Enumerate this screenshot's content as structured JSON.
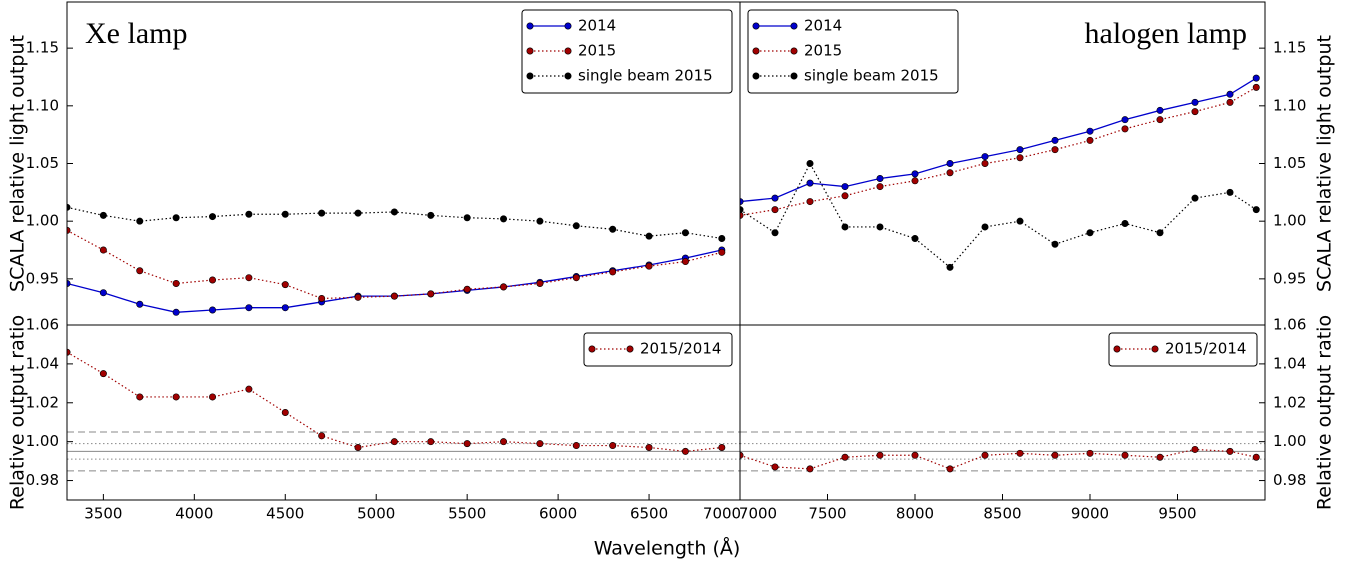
{
  "chart_data": [
    {
      "type": "line",
      "annotation": "Xe lamp",
      "ylabel": "SCALA relative light output",
      "yaxis_side": "left",
      "legend": "upper right",
      "x": [
        3300,
        3500,
        3700,
        3900,
        4100,
        4300,
        4500,
        4700,
        4900,
        5100,
        5300,
        5500,
        5700,
        5900,
        6100,
        6300,
        6500,
        6700,
        6900
      ],
      "xlim": [
        3300,
        7000
      ],
      "ylim": [
        0.91,
        1.19
      ],
      "yticks": [
        0.95,
        "1.00",
        1.05,
        "1.10",
        1.15
      ],
      "series": [
        {
          "name": "2014",
          "color": "#0000cc",
          "linestyle": "solid",
          "values": [
            0.946,
            0.938,
            0.928,
            0.921,
            0.923,
            0.925,
            0.925,
            0.93,
            0.935,
            0.935,
            0.937,
            0.94,
            0.943,
            0.947,
            0.952,
            0.957,
            0.962,
            0.968,
            0.975
          ]
        },
        {
          "name": "2015",
          "color": "#a00000",
          "linestyle": "dotted",
          "values": [
            0.992,
            0.975,
            0.957,
            0.946,
            0.949,
            0.951,
            0.945,
            0.933,
            0.934,
            0.935,
            0.937,
            0.941,
            0.943,
            0.946,
            0.951,
            0.956,
            0.961,
            0.965,
            0.973
          ]
        },
        {
          "name": "single beam 2015",
          "color": "#000000",
          "linestyle": "dotted",
          "values": [
            1.012,
            1.005,
            1.0,
            1.003,
            1.004,
            1.006,
            1.006,
            1.007,
            1.007,
            1.008,
            1.005,
            1.003,
            1.002,
            1.0,
            0.996,
            0.993,
            0.987,
            0.99,
            0.985
          ]
        }
      ]
    },
    {
      "type": "line",
      "annotation": "halogen lamp",
      "ylabel": "SCALA relative light output",
      "yaxis_side": "right",
      "legend": "upper left",
      "x": [
        7000,
        7200,
        7400,
        7600,
        7800,
        8000,
        8200,
        8400,
        8600,
        8800,
        9000,
        9200,
        9400,
        9600,
        9800,
        9950
      ],
      "xlim": [
        7000,
        10000
      ],
      "ylim": [
        0.91,
        1.19
      ],
      "yticks": [
        0.95,
        "1.00",
        1.05,
        "1.10",
        1.15
      ],
      "series": [
        {
          "name": "2014",
          "color": "#0000cc",
          "linestyle": "solid",
          "values": [
            1.017,
            1.02,
            1.033,
            1.03,
            1.037,
            1.041,
            1.05,
            1.056,
            1.062,
            1.07,
            1.078,
            1.088,
            1.096,
            1.103,
            1.11,
            1.124
          ]
        },
        {
          "name": "2015",
          "color": "#a00000",
          "linestyle": "dotted",
          "values": [
            1.005,
            1.01,
            1.017,
            1.022,
            1.03,
            1.035,
            1.042,
            1.05,
            1.055,
            1.062,
            1.07,
            1.08,
            1.088,
            1.095,
            1.103,
            1.116
          ]
        },
        {
          "name": "single beam 2015",
          "color": "#000000",
          "linestyle": "dotted",
          "values": [
            1.01,
            0.99,
            1.05,
            0.995,
            0.995,
            0.985,
            0.96,
            0.995,
            1.0,
            0.98,
            0.99,
            0.998,
            0.99,
            1.02,
            1.025,
            1.01
          ]
        }
      ]
    },
    {
      "type": "line",
      "ylabel": "Relative output ratio",
      "xlabel": "Wavelength (Å)",
      "yaxis_side": "left",
      "legend": "upper right",
      "x": [
        3300,
        3500,
        3700,
        3900,
        4100,
        4300,
        4500,
        4700,
        4900,
        5100,
        5300,
        5500,
        5700,
        5900,
        6100,
        6300,
        6500,
        6700,
        6900
      ],
      "xlim": [
        3300,
        7000
      ],
      "xticks": [
        3500,
        4000,
        4500,
        5000,
        5500,
        6000,
        6500,
        7000
      ],
      "ylim": [
        0.97,
        1.06
      ],
      "yticks": [
        0.98,
        1.02,
        "1.00",
        1.04,
        1.06
      ],
      "reference_lines": [
        {
          "value": 1.005,
          "style": "dashed"
        },
        {
          "value": 0.999,
          "style": "dotted"
        },
        {
          "value": 0.995,
          "style": "solid"
        },
        {
          "value": 0.991,
          "style": "dotted"
        },
        {
          "value": 0.985,
          "style": "dashed"
        }
      ],
      "series": [
        {
          "name": "2015/2014",
          "color": "#a00000",
          "linestyle": "dotted",
          "values": [
            1.046,
            1.035,
            1.023,
            1.023,
            1.023,
            1.027,
            1.015,
            1.003,
            0.997,
            1.0,
            1.0,
            0.999,
            1.0,
            0.999,
            0.998,
            0.998,
            0.997,
            0.995,
            0.997
          ]
        }
      ]
    },
    {
      "type": "line",
      "ylabel": "Relative output ratio",
      "yaxis_side": "right",
      "legend": "upper right",
      "x": [
        7000,
        7200,
        7400,
        7600,
        7800,
        8000,
        8200,
        8400,
        8600,
        8800,
        9000,
        9200,
        9400,
        9600,
        9800,
        9950
      ],
      "xlim": [
        7000,
        10000
      ],
      "xticks": [
        7000,
        7500,
        8000,
        8500,
        9000,
        9500
      ],
      "ylim": [
        0.97,
        1.06
      ],
      "yticks": [
        0.98,
        "1.00",
        1.02,
        1.04,
        1.06
      ],
      "reference_lines": [
        {
          "value": 1.005,
          "style": "dashed"
        },
        {
          "value": 0.999,
          "style": "dotted"
        },
        {
          "value": 0.995,
          "style": "solid"
        },
        {
          "value": 0.991,
          "style": "dotted"
        },
        {
          "value": 0.985,
          "style": "dashed"
        }
      ],
      "series": [
        {
          "name": "2015/2014",
          "color": "#a00000",
          "linestyle": "dotted",
          "values": [
            0.993,
            0.987,
            0.986,
            0.992,
            0.993,
            0.993,
            0.986,
            0.993,
            0.994,
            0.993,
            0.994,
            0.993,
            0.992,
            0.996,
            0.995,
            0.992
          ]
        }
      ]
    }
  ]
}
